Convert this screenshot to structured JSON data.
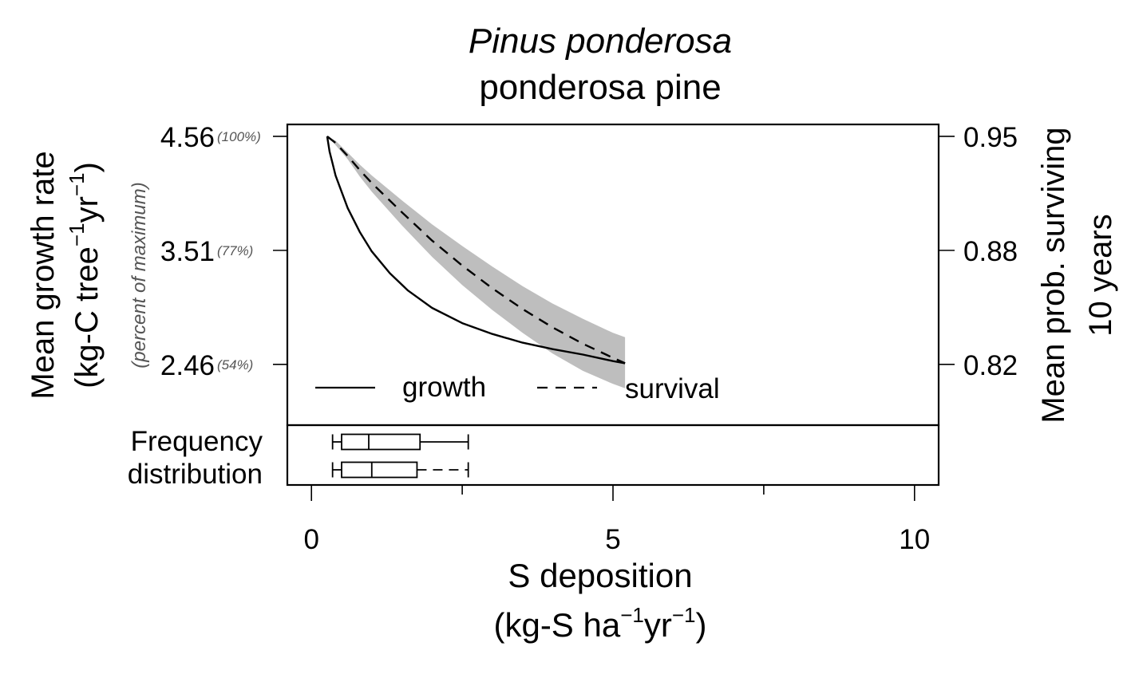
{
  "chart_data": {
    "type": "line",
    "title": "Pinus ponderosa",
    "subtitle": "ponderosa pine",
    "xlabel_line1": "S deposition",
    "xlabel_line2": {
      "pre": "(kg-S ha",
      "sup1": "−1",
      "mid": "yr",
      "sup2": "−1",
      "post": ")"
    },
    "ylabel_left_line1": "Mean growth rate",
    "ylabel_left_line2": {
      "pre": "(kg-C tree",
      "sup1": "−1",
      "mid": "yr",
      "sup2": "−1",
      "post": ")"
    },
    "ylabel_left_sub": "(percent of maximum)",
    "ylabel_right_line1": "Mean prob. surviving",
    "ylabel_right_line2": "10 years",
    "xlim": [
      -0.4,
      10.4
    ],
    "x_ticks": [
      0,
      5,
      10
    ],
    "x_minor_ticks": [
      2.5,
      7.5
    ],
    "ylim_left": [
      1.9,
      4.67
    ],
    "y_ticks_left": [
      {
        "value": 2.46,
        "label": "2.46",
        "pct": "(54%)"
      },
      {
        "value": 3.51,
        "label": "3.51",
        "pct": "(77%)"
      },
      {
        "value": 4.56,
        "label": "4.56",
        "pct": "(100%)"
      }
    ],
    "y_ticks_right": [
      {
        "value": 0.82,
        "label": "0.82",
        "left_equiv": 2.46
      },
      {
        "value": 0.88,
        "label": "0.88",
        "left_equiv": 3.51
      },
      {
        "value": 0.95,
        "label": "0.95",
        "left_equiv": 4.56
      }
    ],
    "series": [
      {
        "name": "growth",
        "style": "solid",
        "x": [
          0.26,
          0.3,
          0.35,
          0.4,
          0.5,
          0.6,
          0.8,
          1.0,
          1.3,
          1.6,
          2.0,
          2.5,
          3.0,
          3.5,
          4.0,
          4.5,
          5.0,
          5.2
        ],
        "y": [
          4.56,
          4.42,
          4.31,
          4.2,
          4.05,
          3.9,
          3.68,
          3.5,
          3.3,
          3.14,
          2.98,
          2.84,
          2.74,
          2.66,
          2.6,
          2.55,
          2.49,
          2.47
        ]
      },
      {
        "name": "survival",
        "style": "dashed",
        "x": [
          0.26,
          0.4,
          0.6,
          0.8,
          1.0,
          1.5,
          2.0,
          2.5,
          3.0,
          3.5,
          4.0,
          4.5,
          5.0,
          5.2
        ],
        "y": [
          4.56,
          4.5,
          4.38,
          4.25,
          4.13,
          3.86,
          3.6,
          3.37,
          3.16,
          2.97,
          2.8,
          2.65,
          2.52,
          2.47
        ],
        "ci_lower": [
          4.56,
          4.48,
          4.35,
          4.19,
          4.05,
          3.74,
          3.45,
          3.19,
          2.96,
          2.75,
          2.56,
          2.4,
          2.28,
          2.24
        ],
        "ci_upper": [
          4.56,
          4.52,
          4.41,
          4.3,
          4.2,
          3.97,
          3.75,
          3.55,
          3.36,
          3.18,
          3.02,
          2.88,
          2.75,
          2.71
        ]
      }
    ],
    "legend": {
      "position": "bottom-left",
      "entries": [
        "growth",
        "survival"
      ]
    },
    "frequency_distribution": {
      "label_line1": "Frequency",
      "label_line2": "distribution",
      "boxplots": [
        {
          "series": "growth",
          "whisker_style": "solid",
          "min": 0.35,
          "q1": 0.5,
          "median": 0.95,
          "q3": 1.8,
          "max": 2.6
        },
        {
          "series": "survival",
          "whisker_style": "dashed",
          "min": 0.35,
          "q1": 0.5,
          "median": 1.0,
          "q3": 1.75,
          "max": 2.6
        }
      ]
    },
    "colors": {
      "ci_band": "#bebebe",
      "line": "#000000"
    },
    "grid": false
  }
}
